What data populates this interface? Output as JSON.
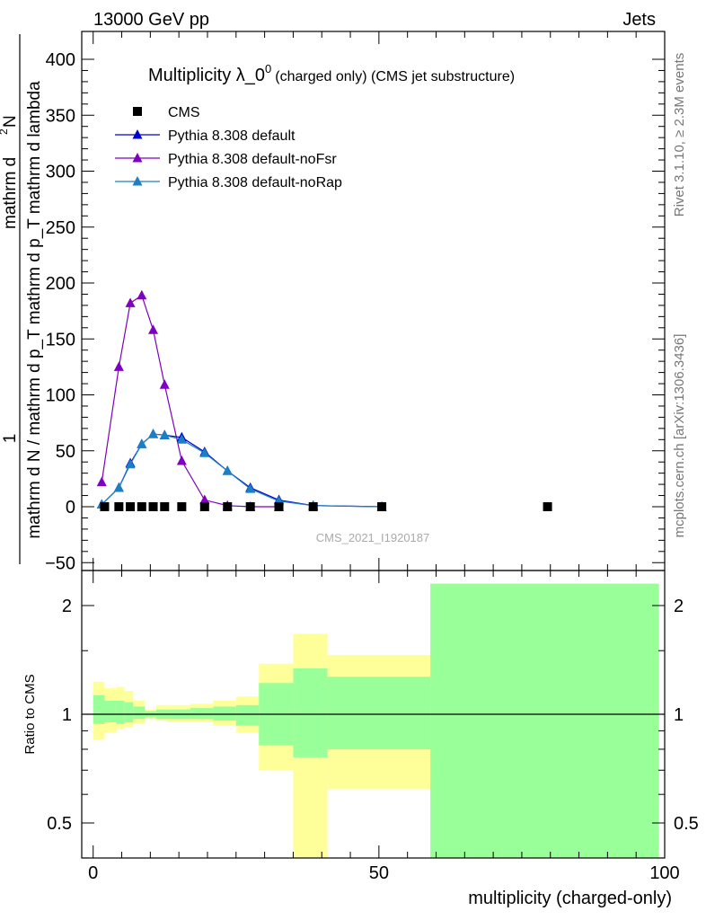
{
  "header": {
    "left": "13000 GeV pp",
    "right": "Jets"
  },
  "side_labels": {
    "rivet": "Rivet 3.1.10, ≥ 2.3M events",
    "mcplots": "mcplots.cern.ch [arXiv:1306.3436]"
  },
  "watermark": "CMS_2021_I1920187",
  "chart_data": [
    {
      "type": "line",
      "title": "Multiplicity λ_0",
      "title_sup": "0",
      "title_small": "(charged only) (CMS jet substructure)",
      "ylabel_denominator": "mathrm d N / mathrm d p_T mathrm d p_T mathrm d lambda",
      "ylabel_numerator_1": "1",
      "ylabel_numerator_2": "mathrm d",
      "ylabel_numerator_3": "2",
      "ylabel_numerator_4": "N",
      "xlim": [
        -2,
        100
      ],
      "ylim": [
        -50,
        425
      ],
      "yticks": [
        -50,
        0,
        50,
        100,
        150,
        200,
        250,
        300,
        350,
        400
      ],
      "ytick_labels": [
        "−50",
        "0",
        "50",
        "100",
        "150",
        "200",
        "250",
        "300",
        "350",
        "400"
      ],
      "legend_position": "top-left",
      "series": [
        {
          "name": "CMS",
          "marker": "square",
          "color": "#000000",
          "x": [
            2,
            4.5,
            6.5,
            8.5,
            10.5,
            12.5,
            15.5,
            19.5,
            23.5,
            27.5,
            32.5,
            38.5,
            50.5,
            79.5
          ],
          "y": [
            0,
            0,
            0,
            0,
            0,
            0,
            0,
            0,
            0,
            0,
            0,
            0,
            0,
            0
          ]
        },
        {
          "name": "Pythia 8.308 default",
          "marker": "triangle",
          "color": "#0000cc",
          "x": [
            1.5,
            4.5,
            6.5,
            8.5,
            10.5,
            12.5,
            15.5,
            19.5,
            23.5,
            27.5,
            32.5,
            38.5,
            50.5
          ],
          "y": [
            2,
            17,
            39,
            56,
            65,
            64,
            62,
            49,
            32,
            17,
            6,
            1,
            0
          ]
        },
        {
          "name": "Pythia 8.308 default-noFsr",
          "marker": "triangle",
          "color": "#7f00c0",
          "x": [
            1.5,
            4.5,
            6.5,
            8.5,
            10.5,
            12.5,
            15.5,
            19.5,
            23.5,
            27.5,
            32.5
          ],
          "y": [
            22,
            125,
            182,
            189,
            158,
            109,
            41,
            6,
            1,
            0,
            0
          ]
        },
        {
          "name": "Pythia 8.308 default-noRap",
          "marker": "triangle",
          "color": "#1b7fc4",
          "x": [
            1.5,
            4.5,
            6.5,
            8.5,
            10.5,
            12.5,
            15.5,
            19.5,
            23.5,
            27.5,
            32.5,
            38.5,
            50.5
          ],
          "y": [
            2,
            17,
            38,
            56,
            65,
            64,
            60,
            48,
            32,
            16,
            5,
            1,
            0
          ]
        }
      ]
    },
    {
      "type": "area",
      "ylabel": "Ratio to CMS",
      "xlabel": "multiplicity (charged-only)",
      "xlim": [
        -2,
        100
      ],
      "ylim": [
        0.38,
        2.3
      ],
      "xticks": [
        0,
        50,
        100
      ],
      "xtick_labels": [
        "0",
        "50",
        "100"
      ],
      "yticks": [
        0.5,
        1,
        2
      ],
      "ytick_labels": [
        "0.5",
        "1",
        "2"
      ],
      "reference_line": 1,
      "band_colors": {
        "stat": "#99ff99",
        "total": "#ffff99"
      },
      "bins": [
        {
          "x0": 0,
          "x1": 2,
          "stat": [
            0.94,
            1.13
          ],
          "total": [
            0.85,
            1.23
          ]
        },
        {
          "x0": 2,
          "x1": 4,
          "stat": [
            0.95,
            1.09
          ],
          "total": [
            0.89,
            1.18
          ]
        },
        {
          "x0": 4,
          "x1": 5.5,
          "stat": [
            0.94,
            1.09
          ],
          "total": [
            0.91,
            1.19
          ]
        },
        {
          "x0": 5.5,
          "x1": 7,
          "stat": [
            0.95,
            1.08
          ],
          "total": [
            0.92,
            1.16
          ]
        },
        {
          "x0": 7,
          "x1": 9,
          "stat": [
            0.97,
            1.05
          ],
          "total": [
            0.94,
            1.09
          ]
        },
        {
          "x0": 9,
          "x1": 11,
          "stat": [
            0.98,
            1.02
          ],
          "total": [
            0.97,
            1.03
          ]
        },
        {
          "x0": 11,
          "x1": 13,
          "stat": [
            0.97,
            1.03
          ],
          "total": [
            0.96,
            1.06
          ]
        },
        {
          "x0": 13,
          "x1": 17,
          "stat": [
            0.97,
            1.03
          ],
          "total": [
            0.95,
            1.06
          ]
        },
        {
          "x0": 17,
          "x1": 21,
          "stat": [
            0.97,
            1.04
          ],
          "total": [
            0.95,
            1.07
          ]
        },
        {
          "x0": 21,
          "x1": 25,
          "stat": [
            0.96,
            1.05
          ],
          "total": [
            0.93,
            1.09
          ]
        },
        {
          "x0": 25,
          "x1": 29,
          "stat": [
            0.93,
            1.06
          ],
          "total": [
            0.89,
            1.12
          ]
        },
        {
          "x0": 29,
          "x1": 35,
          "stat": [
            0.82,
            1.22
          ],
          "total": [
            0.7,
            1.38
          ]
        },
        {
          "x0": 35,
          "x1": 41,
          "stat": [
            0.76,
            1.34
          ],
          "total": [
            0.38,
            1.67
          ]
        },
        {
          "x0": 41,
          "x1": 59,
          "stat": [
            0.8,
            1.27
          ],
          "total": [
            0.62,
            1.46
          ]
        },
        {
          "x0": 59,
          "x1": 99,
          "stat": [
            0.38,
            2.3
          ],
          "total": [
            0.38,
            2.3
          ]
        }
      ]
    }
  ]
}
